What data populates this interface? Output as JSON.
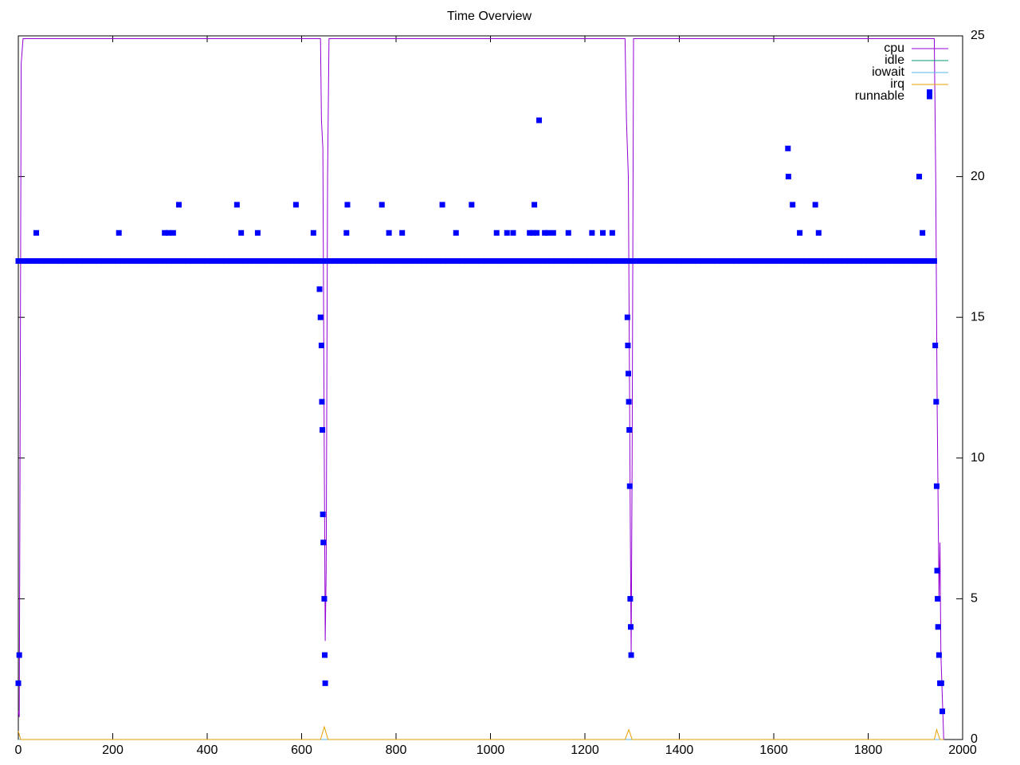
{
  "chart_data": {
    "type": "line",
    "title": "Time Overview",
    "xlim": [
      0,
      2000
    ],
    "xticks": [
      0,
      200,
      400,
      600,
      800,
      1000,
      1200,
      1400,
      1600,
      1800,
      2000
    ],
    "ylim": [
      0,
      25
    ],
    "yticks": [
      0,
      5,
      10,
      15,
      20,
      25
    ],
    "grid": false,
    "legend": "top-right",
    "series": [
      {
        "name": "cpu",
        "color": "#9400d3",
        "type": "line",
        "x": [
          0,
          2,
          4,
          6,
          10,
          640,
          642,
          645,
          648,
          650,
          652,
          655,
          658,
          1285,
          1288,
          1292,
          1296,
          1298,
          1300,
          1303,
          1940,
          1943,
          1946,
          1950,
          1952,
          1954,
          1957,
          1960
        ],
        "values": [
          1,
          0.8,
          12,
          24,
          24.9,
          24.9,
          22,
          21,
          10,
          3.5,
          6,
          20,
          24.9,
          24.9,
          22,
          20,
          8,
          3,
          10,
          24.9,
          24.9,
          20,
          12,
          5,
          7,
          3,
          1.5,
          0
        ]
      },
      {
        "name": "idle",
        "color": "#009e73",
        "type": "line",
        "x": [
          0,
          1960
        ],
        "values": [
          0,
          0
        ]
      },
      {
        "name": "iowait",
        "color": "#56b4e9",
        "type": "line",
        "x": [
          0,
          1960
        ],
        "values": [
          0,
          0
        ]
      },
      {
        "name": "irq",
        "color": "#e69f00",
        "type": "line",
        "x": [
          0,
          5,
          640,
          648,
          656,
          1285,
          1293,
          1300,
          1940,
          1945,
          1952,
          1960
        ],
        "values": [
          0.3,
          0,
          0,
          0.45,
          0,
          0,
          0.35,
          0,
          0,
          0.35,
          0,
          0
        ]
      },
      {
        "name": "runnable",
        "color": "#0000ff",
        "type": "scatter",
        "x": [
          0,
          10,
          20,
          30,
          40,
          50,
          60,
          70,
          80,
          90,
          100,
          110,
          120,
          130,
          140,
          150,
          160,
          170,
          180,
          190,
          200,
          210,
          220,
          230,
          240,
          250,
          260,
          270,
          280,
          290,
          300,
          310,
          320,
          330,
          340,
          350,
          360,
          370,
          380,
          390,
          400,
          410,
          420,
          430,
          440,
          450,
          460,
          470,
          480,
          490,
          500,
          510,
          520,
          530,
          540,
          550,
          560,
          570,
          580,
          590,
          600,
          610,
          620,
          630,
          640,
          650,
          660,
          670,
          680,
          690,
          700,
          710,
          720,
          730,
          740,
          750,
          760,
          770,
          780,
          790,
          800,
          810,
          820,
          830,
          840,
          850,
          860,
          870,
          880,
          890,
          900,
          910,
          920,
          930,
          940,
          950,
          960,
          970,
          980,
          990,
          1000,
          1010,
          1020,
          1030,
          1040,
          1050,
          1060,
          1070,
          1080,
          1090,
          1100,
          1110,
          1120,
          1130,
          1140,
          1150,
          1160,
          1170,
          1180,
          1190,
          1200,
          1210,
          1220,
          1230,
          1240,
          1250,
          1260,
          1270,
          1280,
          1290,
          1300,
          1310,
          1320,
          1330,
          1340,
          1350,
          1360,
          1370,
          1380,
          1390,
          1400,
          1410,
          1420,
          1430,
          1440,
          1450,
          1460,
          1470,
          1480,
          1490,
          1500,
          1510,
          1520,
          1530,
          1540,
          1550,
          1560,
          1570,
          1580,
          1590,
          1600,
          1610,
          1620,
          1630,
          1640,
          1650,
          1660,
          1670,
          1680,
          1690,
          1700,
          1710,
          1720,
          1730,
          1740,
          1750,
          1760,
          1770,
          1780,
          1790,
          1800,
          1810,
          1820,
          1830,
          1840,
          1850,
          1860,
          1870,
          1880,
          1890,
          1900,
          1910,
          1920,
          1930,
          1940,
          0,
          2,
          38,
          213,
          310,
          318,
          328,
          340,
          463,
          472,
          507,
          588,
          625,
          638,
          640,
          642,
          643,
          644,
          645,
          646,
          648,
          649,
          650,
          695,
          697,
          770,
          785,
          813,
          898,
          927,
          960,
          1013,
          1035,
          1048,
          1083,
          1090,
          1093,
          1098,
          1103,
          1115,
          1122,
          1133,
          1165,
          1215,
          1238,
          1258,
          1290,
          1291,
          1292,
          1293,
          1294,
          1295,
          1296,
          1297,
          1298,
          1630,
          1631,
          1640,
          1655,
          1688,
          1695,
          1908,
          1915,
          1930,
          1942,
          1944,
          1945,
          1946,
          1947,
          1948,
          1950,
          1952,
          1955,
          1957
        ],
        "values": [
          17,
          17,
          17,
          17,
          17,
          17,
          17,
          17,
          17,
          17,
          17,
          17,
          17,
          17,
          17,
          17,
          17,
          17,
          17,
          17,
          17,
          17,
          17,
          17,
          17,
          17,
          17,
          17,
          17,
          17,
          17,
          17,
          17,
          17,
          17,
          17,
          17,
          17,
          17,
          17,
          17,
          17,
          17,
          17,
          17,
          17,
          17,
          17,
          17,
          17,
          17,
          17,
          17,
          17,
          17,
          17,
          17,
          17,
          17,
          17,
          17,
          17,
          17,
          17,
          17,
          17,
          17,
          17,
          17,
          17,
          17,
          17,
          17,
          17,
          17,
          17,
          17,
          17,
          17,
          17,
          17,
          17,
          17,
          17,
          17,
          17,
          17,
          17,
          17,
          17,
          17,
          17,
          17,
          17,
          17,
          17,
          17,
          17,
          17,
          17,
          17,
          17,
          17,
          17,
          17,
          17,
          17,
          17,
          17,
          17,
          17,
          17,
          17,
          17,
          17,
          17,
          17,
          17,
          17,
          17,
          17,
          17,
          17,
          17,
          17,
          17,
          17,
          17,
          17,
          17,
          17,
          17,
          17,
          17,
          17,
          17,
          17,
          17,
          17,
          17,
          17,
          17,
          17,
          17,
          17,
          17,
          17,
          17,
          17,
          17,
          17,
          17,
          17,
          17,
          17,
          17,
          17,
          17,
          17,
          17,
          17,
          17,
          17,
          17,
          17,
          17,
          17,
          17,
          17,
          17,
          17,
          17,
          17,
          17,
          17,
          17,
          17,
          17,
          17,
          17,
          17,
          17,
          17,
          17,
          17,
          17,
          17,
          17,
          17,
          17,
          17,
          17,
          17,
          17,
          17,
          2,
          3,
          18,
          18,
          18,
          18,
          18,
          19,
          19,
          18,
          18,
          19,
          18,
          16,
          15,
          14,
          12,
          11,
          8,
          7,
          5,
          3,
          2,
          18,
          19,
          19,
          18,
          18,
          19,
          18,
          19,
          18,
          18,
          18,
          18,
          18,
          19,
          18,
          22,
          18,
          18,
          18,
          18,
          18,
          18,
          18,
          15,
          14,
          13,
          12,
          11,
          9,
          5,
          4,
          3,
          21,
          20,
          19,
          18,
          19,
          18,
          20,
          18,
          23,
          14,
          12,
          9,
          6,
          5,
          4,
          3,
          2,
          2,
          1
        ]
      }
    ]
  }
}
